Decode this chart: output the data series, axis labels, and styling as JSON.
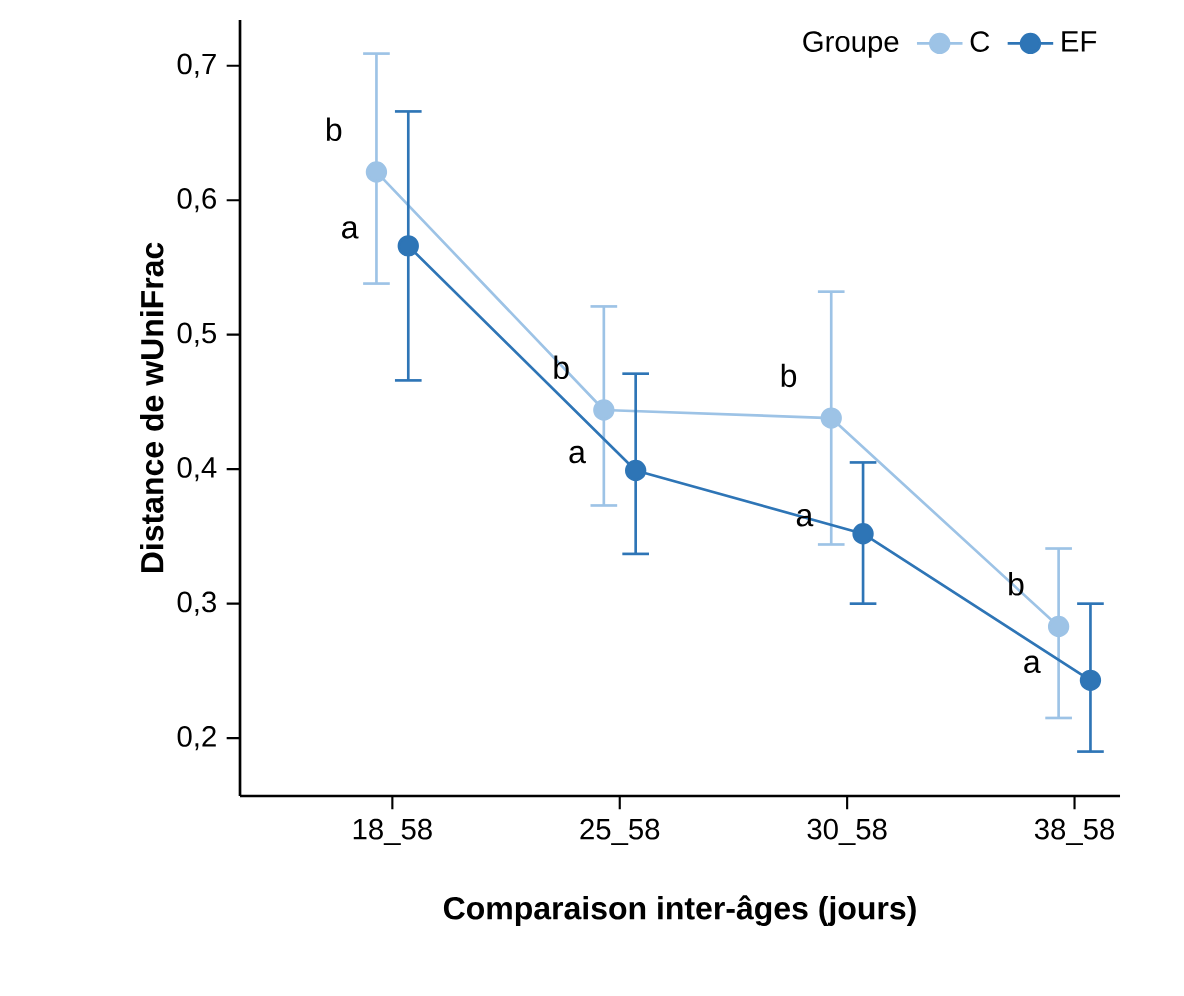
{
  "chart_data": {
    "type": "line",
    "xlabel": "Comparaison inter-âges (jours)",
    "ylabel": "Distance de wUniFrac",
    "legend_title": "Groupe",
    "categories": [
      "18_58",
      "25_58",
      "30_58",
      "38_58"
    ],
    "series": [
      {
        "name": "C",
        "color": "#9dc3e6",
        "values": [
          0.621,
          0.444,
          0.438,
          0.283
        ],
        "errors": [
          [
            0.538,
            0.709
          ],
          [
            0.373,
            0.521
          ],
          [
            0.344,
            0.532
          ],
          [
            0.215,
            0.341
          ]
        ]
      },
      {
        "name": "EF",
        "color": "#2e75b6",
        "values": [
          0.566,
          0.399,
          0.352,
          0.243
        ],
        "errors": [
          [
            0.466,
            0.666
          ],
          [
            0.337,
            0.471
          ],
          [
            0.3,
            0.405
          ],
          [
            0.19,
            0.3
          ]
        ]
      }
    ],
    "ylim": [
      0.157,
      0.734
    ],
    "yticks": [
      {
        "value": 0.2,
        "label": "0,2"
      },
      {
        "value": 0.3,
        "label": "0,3"
      },
      {
        "value": 0.4,
        "label": "0,4"
      },
      {
        "value": 0.5,
        "label": "0,5"
      },
      {
        "value": 0.6,
        "label": "0,6"
      },
      {
        "value": 0.7,
        "label": "0,7"
      }
    ],
    "annotations": [
      {
        "text": "b",
        "x": "18_58",
        "y": 0.621
      },
      {
        "text": "a",
        "x": "18_58",
        "y": 0.566
      },
      {
        "text": "b",
        "x": "25_58",
        "y": 0.444
      },
      {
        "text": "a",
        "x": "25_58",
        "y": 0.399
      },
      {
        "text": "b",
        "x": "30_58",
        "y": 0.438
      },
      {
        "text": "a",
        "x": "30_58",
        "y": 0.352
      },
      {
        "text": "b",
        "x": "38_58",
        "y": 0.283
      },
      {
        "text": "a",
        "x": "38_58",
        "y": 0.243
      }
    ],
    "legend": "top right",
    "marker": "circle",
    "line_style": "solid",
    "grid": false
  }
}
